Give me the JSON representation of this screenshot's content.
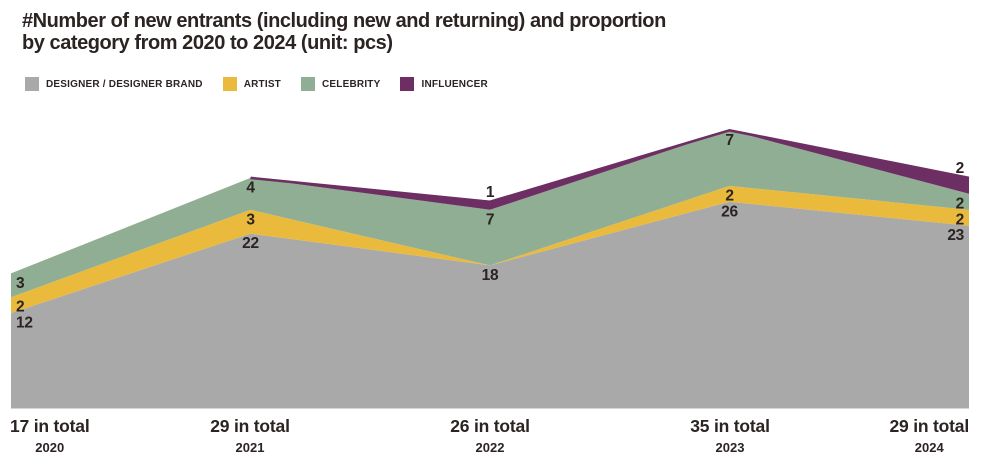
{
  "title": {
    "line1": "#Number of new entrants (including new and returning) and proportion",
    "line2": "by category from 2020 to 2024 (unit: pcs)"
  },
  "colors": {
    "designer": "#a9a9a9",
    "artist": "#eaba3c",
    "celebrity": "#8fae94",
    "influencer": "#6d2e63",
    "text": "#2b2423",
    "background": "#ffffff"
  },
  "chart_data": {
    "type": "area",
    "stacked": true,
    "grid": false,
    "legend_position": "top-left",
    "categories": [
      "2020",
      "2021",
      "2022",
      "2023",
      "2024"
    ],
    "series": [
      {
        "name": "DESIGNER / DESIGNER BRAND",
        "color": "#a9a9a9",
        "values": [
          12,
          22,
          18,
          26,
          23
        ]
      },
      {
        "name": "ARTIST",
        "color": "#eaba3c",
        "values": [
          2,
          3,
          0,
          2,
          2
        ]
      },
      {
        "name": "CELEBRITY",
        "color": "#8fae94",
        "values": [
          3,
          4,
          7,
          7,
          2
        ]
      },
      {
        "name": "INFLUENCER",
        "color": "#6d2e63",
        "values": [
          0,
          0,
          1,
          0,
          2
        ]
      }
    ],
    "totals": [
      {
        "total_label": "17 in total",
        "year": "2020"
      },
      {
        "total_label": "29 in total",
        "year": "2021"
      },
      {
        "total_label": "26 in total",
        "year": "2022"
      },
      {
        "total_label": "35 in total",
        "year": "2023"
      },
      {
        "total_label": "29 in total",
        "year": "2024"
      }
    ]
  }
}
